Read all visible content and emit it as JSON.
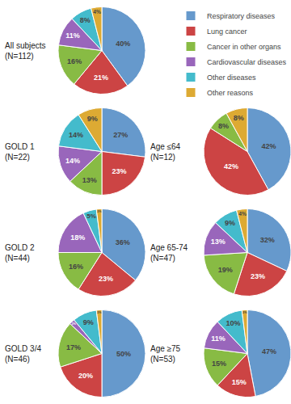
{
  "chart_data": [
    {
      "type": "pie",
      "title": "All subjects\n(N=112)",
      "categories": [
        "Respiratory diseases",
        "Lung cancer",
        "Cancer in other organs",
        "Cardiovascular diseases",
        "Other diseases",
        "Other reasons"
      ],
      "values": [
        40,
        21,
        16,
        11,
        8,
        4
      ],
      "value_labels": [
        "40%",
        "21%",
        "16%",
        "11%",
        "8%",
        "4%"
      ],
      "colors": [
        "#6699CC",
        "#CC4444",
        "#88BB44",
        "#9966BB",
        "#44BBCC",
        "#DDAA33"
      ],
      "data_labels": true,
      "legend": "upper right"
    },
    {
      "type": "pie",
      "title": "GOLD 1\n(N=22)",
      "categories": [
        "Respiratory diseases",
        "Lung cancer",
        "Cancer in other organs",
        "Cardiovascular diseases",
        "Other diseases",
        "Other reasons"
      ],
      "values": [
        27,
        23,
        13,
        14,
        14,
        9
      ],
      "value_labels": [
        "27%",
        "23%",
        "13%",
        "14%",
        "14%",
        "9%"
      ],
      "colors": [
        "#6699CC",
        "#CC4444",
        "#88BB44",
        "#9966BB",
        "#44BBCC",
        "#DDAA33"
      ],
      "data_labels": true
    },
    {
      "type": "pie",
      "title": "Age ≤64\n(N=12)",
      "categories": [
        "Respiratory diseases",
        "Lung cancer",
        "Cancer in other organs",
        "Other reasons"
      ],
      "values": [
        42,
        42,
        8,
        8
      ],
      "value_labels": [
        "42%",
        "42%",
        "8%",
        "8%"
      ],
      "colors": [
        "#6699CC",
        "#CC4444",
        "#88BB44",
        "#DDAA33"
      ],
      "data_labels": true
    },
    {
      "type": "pie",
      "title": "GOLD 2\n(N=44)",
      "categories": [
        "Respiratory diseases",
        "Lung cancer",
        "Cancer in other organs",
        "Cardiovascular diseases",
        "Other diseases",
        "Other reasons"
      ],
      "values": [
        36,
        23,
        16,
        18,
        5,
        2
      ],
      "value_labels": [
        "36%",
        "23%",
        "16%",
        "18%",
        "5%",
        "2%"
      ],
      "colors": [
        "#6699CC",
        "#CC4444",
        "#88BB44",
        "#9966BB",
        "#44BBCC",
        "#DDAA33"
      ],
      "data_labels": true
    },
    {
      "type": "pie",
      "title": "Age 65-74\n(N=47)",
      "categories": [
        "Respiratory diseases",
        "Lung cancer",
        "Cancer in other organs",
        "Cardiovascular diseases",
        "Other diseases",
        "Other reasons"
      ],
      "values": [
        32,
        23,
        19,
        13,
        9,
        4
      ],
      "value_labels": [
        "32%",
        "23%",
        "19%",
        "13%",
        "9%",
        "4%"
      ],
      "colors": [
        "#6699CC",
        "#CC4444",
        "#88BB44",
        "#9966BB",
        "#44BBCC",
        "#DDAA33"
      ],
      "data_labels": true
    },
    {
      "type": "pie",
      "title": "GOLD 3/4\n(N=46)",
      "categories": [
        "Respiratory diseases",
        "Lung cancer",
        "Cancer in other organs",
        "Cardiovascular diseases",
        "Other diseases",
        "Other reasons"
      ],
      "values": [
        50,
        20,
        17,
        2,
        9,
        2
      ],
      "value_labels": [
        "50%",
        "20%",
        "17%",
        "2%",
        "9%",
        "2%"
      ],
      "colors": [
        "#6699CC",
        "#CC4444",
        "#88BB44",
        "#9966BB",
        "#44BBCC",
        "#DDAA33"
      ],
      "data_labels": true
    },
    {
      "type": "pie",
      "title": "Age ≥75\n(N=53)",
      "categories": [
        "Respiratory diseases",
        "Lung cancer",
        "Cancer in other organs",
        "Cardiovascular diseases",
        "Other diseases",
        "Other reasons"
      ],
      "values": [
        47,
        15,
        15,
        11,
        10,
        2
      ],
      "value_labels": [
        "47%",
        "15%",
        "15%",
        "11%",
        "10%",
        "2%"
      ],
      "colors": [
        "#6699CC",
        "#CC4444",
        "#88BB44",
        "#9966BB",
        "#44BBCC",
        "#DDAA33"
      ],
      "data_labels": true
    }
  ]
}
